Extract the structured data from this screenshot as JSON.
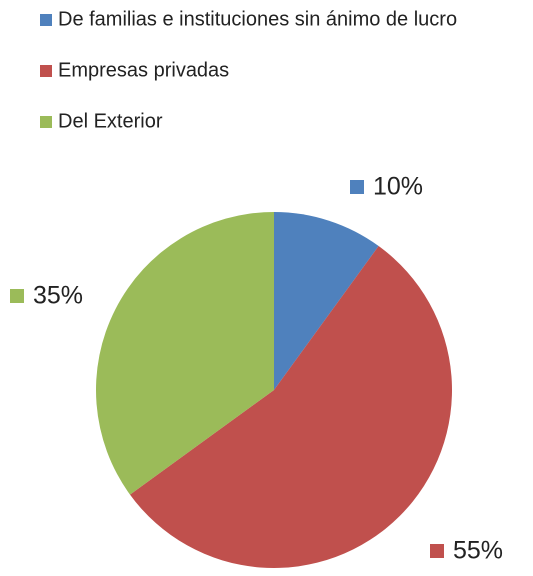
{
  "chart_data": {
    "type": "pie",
    "categories": [
      "De familias e instituciones sin ánimo de lucro",
      "Empresas privadas",
      "Del Exterior"
    ],
    "values": [
      10,
      55,
      35
    ],
    "value_labels": [
      "10%",
      "55%",
      "35%"
    ],
    "colors": [
      "#4f81bd",
      "#c0504d",
      "#9bbb59"
    ],
    "legend": "top-left"
  }
}
